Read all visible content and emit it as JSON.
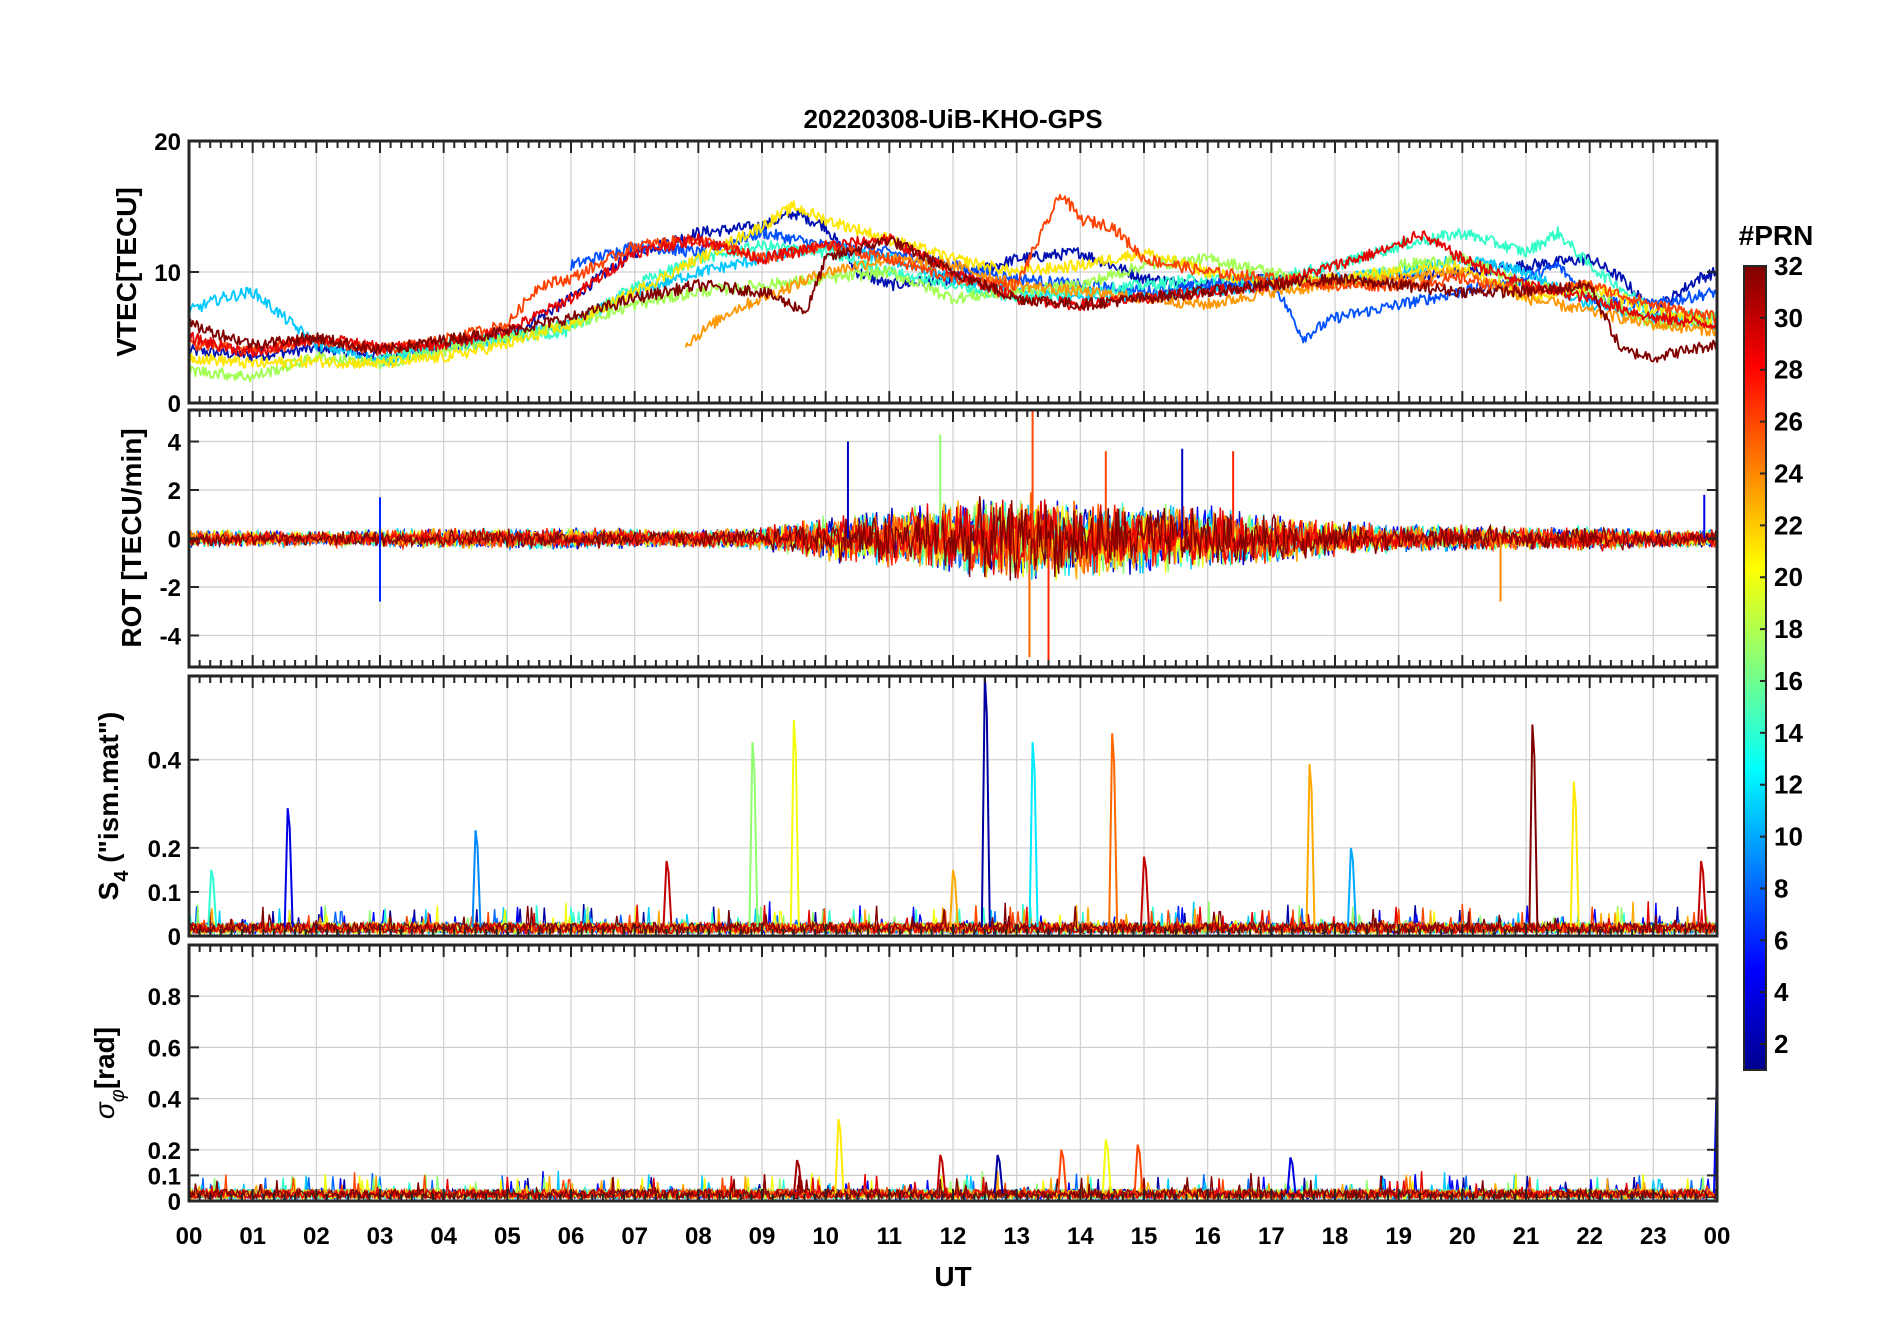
{
  "chart_data": {
    "type": "line",
    "title": "20220308-UiB-KHO-GPS",
    "xlabel": "UT",
    "x_tick_labels": [
      "00",
      "01",
      "02",
      "03",
      "04",
      "05",
      "06",
      "07",
      "08",
      "09",
      "10",
      "11",
      "12",
      "13",
      "14",
      "15",
      "16",
      "17",
      "18",
      "19",
      "20",
      "21",
      "22",
      "23",
      "00"
    ],
    "xlim": [
      0,
      24
    ],
    "grid": true,
    "colorbar": {
      "label": "#PRN",
      "range": [
        1,
        32
      ],
      "tick_labels": [
        "2",
        "4",
        "6",
        "8",
        "10",
        "12",
        "14",
        "16",
        "18",
        "20",
        "22",
        "24",
        "26",
        "28",
        "30",
        "32"
      ],
      "colormap": "jet"
    },
    "panels": [
      {
        "name": "vtec",
        "ylabel": "VTEC[TECU]",
        "ylim": [
          0,
          20
        ],
        "yticks": [
          0,
          10,
          20
        ],
        "series_note_free": true,
        "series": [
          {
            "prn": 2,
            "color": "#000fb0",
            "x": [
              0,
              1,
              2,
              3,
              4,
              5,
              6,
              7,
              8,
              9,
              9.5,
              10,
              10.5,
              11,
              12,
              13,
              14,
              14.5,
              15,
              16,
              17,
              18,
              19,
              20,
              21,
              22,
              22.5,
              23,
              23.7,
              24
            ],
            "y": [
              4,
              3.6,
              4.2,
              3.6,
              4.4,
              5,
              8,
              11.5,
              13,
              13.5,
              14.5,
              13.5,
              10,
              9,
              9.5,
              11,
              11.5,
              10.5,
              9.5,
              9,
              9.5,
              9.2,
              9.5,
              10,
              10.5,
              11,
              9.5,
              7,
              9.5,
              10
            ]
          },
          {
            "prn": 6,
            "color": "#0050ff",
            "x": [
              6,
              7,
              8,
              9,
              10,
              11,
              12,
              13,
              14,
              15,
              16,
              17,
              17.5,
              18,
              19,
              20,
              21,
              21.5,
              22,
              23,
              24
            ],
            "y": [
              10.5,
              12,
              11.5,
              13,
              12,
              11.5,
              10.5,
              9.5,
              9,
              8.5,
              9,
              9.5,
              5,
              6.5,
              7.5,
              8.5,
              9.5,
              10.5,
              8,
              7.5,
              8.5
            ]
          },
          {
            "prn": 11,
            "color": "#00c8ff",
            "x": [
              0,
              0.5,
              1,
              2,
              3,
              4,
              5,
              6,
              7,
              8,
              9,
              10,
              11,
              12,
              13,
              14,
              15,
              16,
              17,
              18,
              19,
              20,
              21,
              22,
              23,
              24
            ],
            "y": [
              7,
              8,
              8.5,
              4.5,
              3.2,
              4.2,
              5,
              6,
              8.5,
              10,
              11,
              12,
              11,
              9.5,
              8.5,
              8,
              8.2,
              8.5,
              9,
              9.5,
              10,
              11,
              10,
              7.5,
              6.5,
              6
            ]
          },
          {
            "prn": 14,
            "color": "#30ffc8",
            "x": [
              3,
              4,
              5,
              6,
              7,
              8,
              9,
              10,
              11,
              12,
              13,
              14,
              15,
              16,
              17,
              18,
              19,
              20,
              21,
              21.5,
              22,
              23,
              24
            ],
            "y": [
              3.5,
              4.5,
              5,
              5.5,
              9,
              11,
              12,
              11.5,
              10,
              9,
              8,
              8.5,
              9,
              9.5,
              9.5,
              10.5,
              12,
              13,
              11.5,
              13,
              10.5,
              7,
              6.5
            ]
          },
          {
            "prn": 17,
            "color": "#a0ff50",
            "x": [
              0,
              1,
              2,
              3,
              4,
              5,
              6,
              7,
              8,
              9,
              10,
              11,
              12,
              13,
              14,
              15,
              16,
              17,
              18,
              19,
              20,
              21,
              22,
              23,
              24
            ],
            "y": [
              2.5,
              2,
              3.5,
              3,
              4,
              5,
              6,
              7.5,
              8.5,
              9,
              9.5,
              10,
              8,
              8.5,
              9,
              10.5,
              11,
              10,
              9,
              10.5,
              11,
              9,
              8.5,
              6,
              6.5
            ]
          },
          {
            "prn": 20,
            "color": "#ffe600",
            "x": [
              0,
              1,
              2,
              3,
              4,
              5,
              6,
              7,
              8,
              9,
              9.5,
              10,
              11,
              12,
              13,
              14,
              15,
              16,
              17,
              18,
              19,
              20,
              21,
              22,
              23,
              24
            ],
            "y": [
              3.5,
              3,
              3.2,
              3,
              3.5,
              4.5,
              6,
              8.5,
              11,
              13.5,
              15,
              14,
              12.5,
              11,
              10,
              10.5,
              11.5,
              10,
              9,
              9.5,
              10,
              10.5,
              8,
              9,
              7,
              6
            ]
          },
          {
            "prn": 24,
            "color": "#ff9600",
            "x": [
              7.8,
              8.5,
              9,
              10,
              11,
              12,
              13,
              14,
              15,
              16,
              17,
              18,
              19,
              20,
              21,
              22,
              23,
              24
            ],
            "y": [
              4.5,
              7,
              8,
              10,
              11,
              10.5,
              9,
              8.5,
              8,
              7.5,
              8.5,
              9,
              9.5,
              10,
              8,
              7,
              6,
              5.5
            ]
          },
          {
            "prn": 26,
            "color": "#ff4000",
            "x": [
              0,
              1,
              2,
              3,
              4,
              5,
              5.5,
              6,
              7,
              8,
              9,
              10,
              11,
              12,
              13,
              13.7,
              14,
              14.5,
              15,
              16,
              17,
              18,
              19,
              20,
              21,
              22,
              23,
              24
            ],
            "y": [
              4.5,
              4,
              4.8,
              4,
              4.8,
              6,
              9,
              9.5,
              12,
              12.5,
              11,
              12,
              11,
              9.5,
              9,
              16,
              14,
              13.5,
              11,
              10,
              9.5,
              9,
              9,
              9.5,
              8.5,
              9,
              7.5,
              6.5
            ]
          },
          {
            "prn": 29,
            "color": "#e60000",
            "x": [
              0,
              1,
              2,
              3,
              4,
              5,
              6,
              7,
              8,
              9,
              10,
              11,
              12,
              13,
              14,
              15,
              16,
              17,
              18,
              19,
              19.3,
              20,
              21,
              22,
              23,
              24
            ],
            "y": [
              5,
              3.8,
              5,
              4.2,
              4.5,
              5.5,
              8,
              11.5,
              12.5,
              11,
              12,
              12.5,
              10,
              8,
              7.5,
              8,
              8.5,
              9,
              10.5,
              12,
              13,
              11,
              9,
              8,
              6.5,
              6
            ]
          },
          {
            "prn": 32,
            "color": "#800000",
            "x": [
              0,
              1,
              2,
              3,
              4,
              5,
              6,
              7,
              8,
              9,
              9.7,
              10,
              11,
              12,
              13,
              14,
              15,
              16,
              17,
              18,
              19,
              20,
              21,
              22,
              22.5,
              23,
              24
            ],
            "y": [
              6,
              4.5,
              5,
              4,
              4.8,
              5.5,
              6.5,
              8,
              9,
              8.5,
              7,
              11,
              12.5,
              10,
              8,
              7.5,
              8,
              8.5,
              9,
              9.5,
              9,
              8.5,
              8.5,
              9,
              4,
              3.5,
              4.5
            ]
          }
        ]
      },
      {
        "name": "rot",
        "ylabel": "ROT [TECU/min]",
        "ylim": [
          -5.3,
          5.3
        ],
        "yticks": [
          -4,
          -2,
          0,
          2,
          4
        ],
        "envelope": {
          "x": [
            0,
            1,
            2,
            3,
            4,
            5,
            6,
            7,
            8,
            9,
            10,
            11,
            12,
            13,
            14,
            15,
            16,
            17,
            18,
            19,
            20,
            21,
            22,
            23,
            24
          ],
          "typical_amplitude": [
            0.4,
            0.35,
            0.35,
            0.4,
            0.45,
            0.45,
            0.5,
            0.45,
            0.4,
            0.5,
            1.0,
            1.3,
            1.6,
            2.0,
            1.7,
            1.6,
            1.4,
            1.1,
            0.8,
            0.6,
            0.6,
            0.5,
            0.6,
            0.4,
            0.4
          ]
        },
        "spikes": [
          {
            "x": 3.0,
            "y": -2.6,
            "prn": 6
          },
          {
            "x": 3.0,
            "y": 1.7,
            "prn": 6
          },
          {
            "x": 10.35,
            "y": 4.0,
            "prn": 3
          },
          {
            "x": 11.8,
            "y": 4.3,
            "prn": 17
          },
          {
            "x": 13.25,
            "y": 5.3,
            "prn": 26
          },
          {
            "x": 13.2,
            "y": -4.9,
            "prn": 25
          },
          {
            "x": 13.5,
            "y": -5.3,
            "prn": 27
          },
          {
            "x": 14.4,
            "y": 3.6,
            "prn": 26
          },
          {
            "x": 15.6,
            "y": 3.7,
            "prn": 3
          },
          {
            "x": 16.4,
            "y": 3.6,
            "prn": 27
          },
          {
            "x": 20.6,
            "y": -2.6,
            "prn": 24
          },
          {
            "x": 23.8,
            "y": 1.8,
            "prn": 4
          }
        ]
      },
      {
        "name": "s4",
        "ylabel": "S4 (\"ism.mat\")",
        "ylabel_main": "S",
        "ylabel_sub": "4",
        "ylabel_rest": " (\"ism.mat\")",
        "ylim": [
          0,
          0.59
        ],
        "yticks": [
          0,
          0.1,
          0.2,
          0.4
        ],
        "baseline_level": 0.02,
        "spikes": [
          {
            "x": 1.55,
            "y": 0.29,
            "prn": 4
          },
          {
            "x": 4.5,
            "y": 0.24,
            "prn": 9
          },
          {
            "x": 7.5,
            "y": 0.17,
            "prn": 30
          },
          {
            "x": 8.85,
            "y": 0.44,
            "prn": 17
          },
          {
            "x": 9.5,
            "y": 0.49,
            "prn": 20
          },
          {
            "x": 12.5,
            "y": 0.59,
            "prn": 2
          },
          {
            "x": 13.25,
            "y": 0.44,
            "prn": 12
          },
          {
            "x": 14.5,
            "y": 0.46,
            "prn": 25
          },
          {
            "x": 15.0,
            "y": 0.18,
            "prn": 30
          },
          {
            "x": 17.6,
            "y": 0.39,
            "prn": 23
          },
          {
            "x": 18.25,
            "y": 0.2,
            "prn": 10
          },
          {
            "x": 21.1,
            "y": 0.48,
            "prn": 32
          },
          {
            "x": 21.75,
            "y": 0.35,
            "prn": 21
          },
          {
            "x": 23.75,
            "y": 0.17,
            "prn": 30
          },
          {
            "x": 0.35,
            "y": 0.15,
            "prn": 14
          },
          {
            "x": 12.0,
            "y": 0.15,
            "prn": 23
          }
        ]
      },
      {
        "name": "sigma_phi",
        "ylabel": "σφ[rad]",
        "ylabel_main": "σ",
        "ylabel_sub": "φ",
        "ylabel_rest": "[rad]",
        "ylim": [
          0,
          1.0
        ],
        "yticks": [
          0,
          0.1,
          0.2,
          0.4,
          0.6,
          0.8
        ],
        "baseline_level": 0.03,
        "spikes": [
          {
            "x": 10.2,
            "y": 0.32,
            "prn": 21
          },
          {
            "x": 13.7,
            "y": 0.2,
            "prn": 26
          },
          {
            "x": 14.4,
            "y": 0.24,
            "prn": 20
          },
          {
            "x": 14.9,
            "y": 0.22,
            "prn": 26
          },
          {
            "x": 9.55,
            "y": 0.16,
            "prn": 31
          },
          {
            "x": 11.8,
            "y": 0.18,
            "prn": 30
          },
          {
            "x": 12.7,
            "y": 0.18,
            "prn": 2
          },
          {
            "x": 17.3,
            "y": 0.17,
            "prn": 4
          },
          {
            "x": 24.0,
            "y": 0.52,
            "prn": 5
          }
        ]
      }
    ]
  }
}
